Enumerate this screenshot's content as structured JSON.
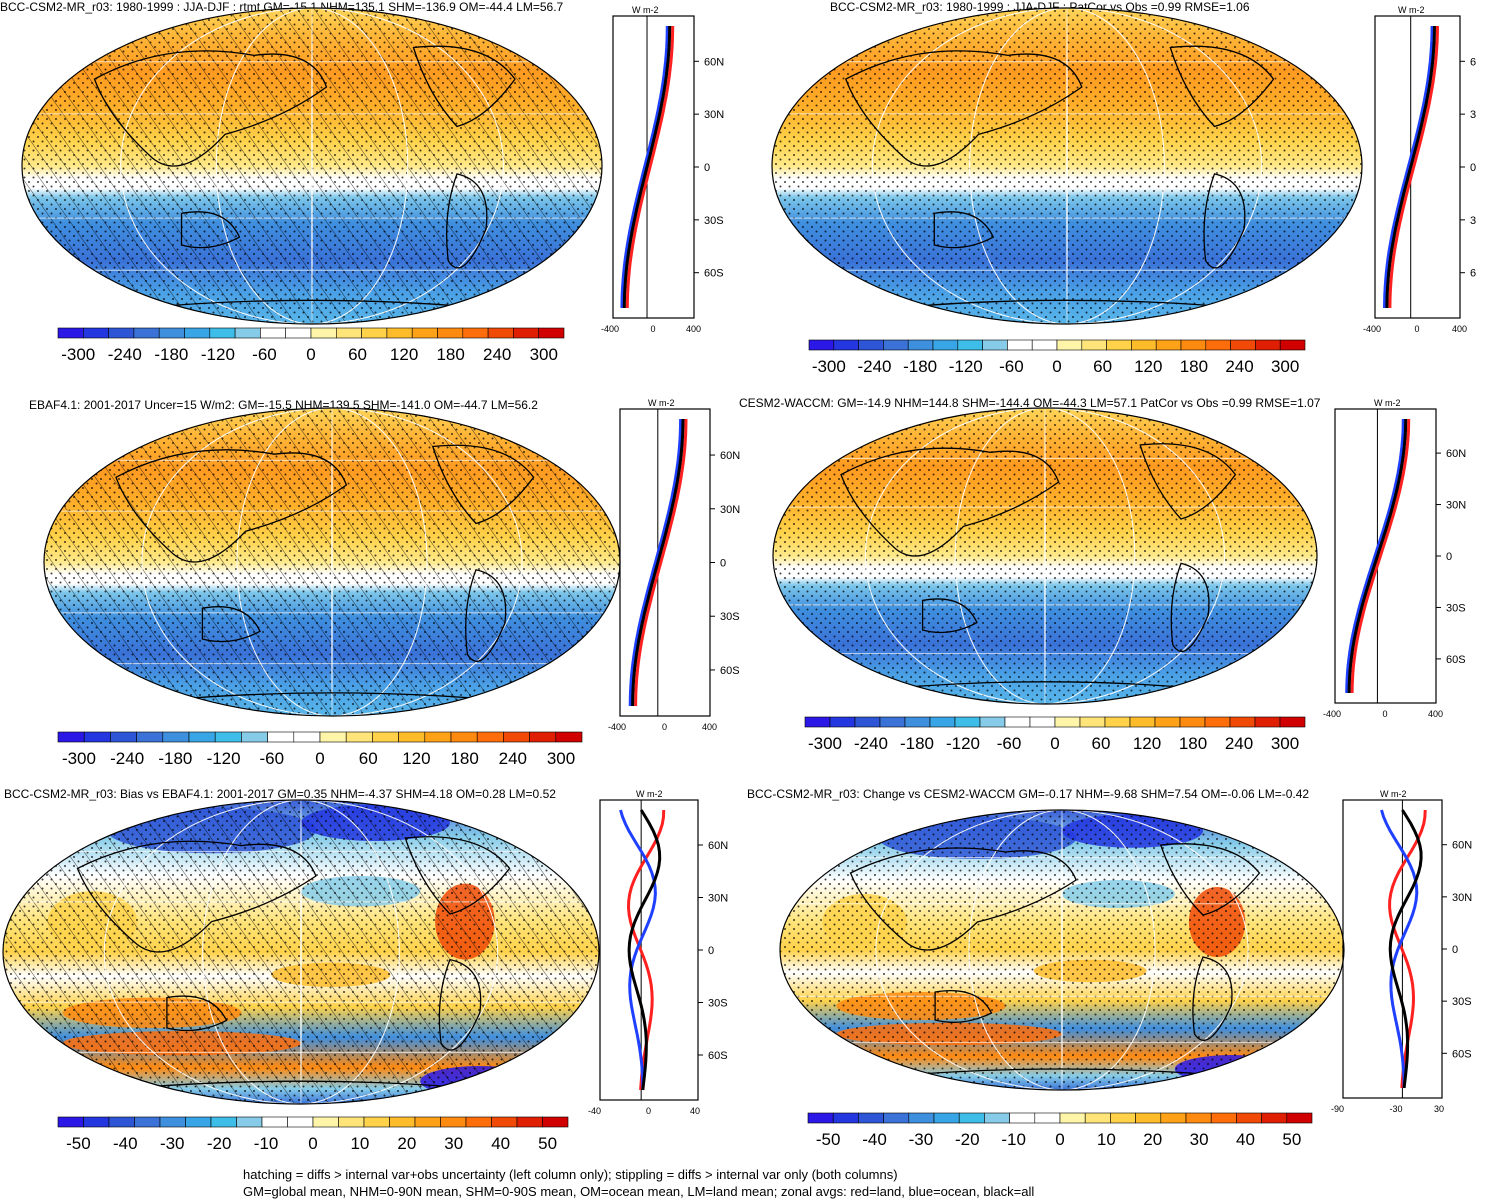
{
  "panels": [
    {
      "title": "BCC-CSM2-MR_r03: 1980-1999 : JJA-DJF : rtmt GM=-15.1 NHM=135.1 SHM=-136.9 OM=-44.4 LM=56.7",
      "kind": "abs",
      "hatch": true,
      "lat_labels": [
        "60N",
        "30N",
        "0",
        "30S",
        "60S"
      ],
      "x_ticks": [
        "-400",
        "0",
        "400"
      ],
      "cbar_labels": [
        "-300",
        "-240",
        "-180",
        "-120",
        "-60",
        "0",
        "60",
        "120",
        "180",
        "240",
        "300"
      ],
      "units": "W m-2"
    },
    {
      "title": "BCC-CSM2-MR_r03: 1980-1999 : JJA-DJF : PatCor vs Obs =0.99 RMSE=1.06",
      "kind": "abs",
      "hatch": false,
      "lat_labels": [
        "6",
        "3",
        "0",
        "3",
        "6"
      ],
      "x_ticks": [
        "-400",
        "0",
        "400"
      ],
      "cbar_labels": [
        "-300",
        "-240",
        "-180",
        "-120",
        "-60",
        "0",
        "60",
        "120",
        "180",
        "240",
        "300"
      ],
      "units": "W m-2"
    },
    {
      "title": "EBAF4.1: 2001-2017 Uncer=15 W/m2: GM=-15.5 NHM=139.5 SHM=-141.0 OM=-44.7 LM=56.2",
      "kind": "abs",
      "hatch": true,
      "lat_labels": [
        "60N",
        "30N",
        "0",
        "30S",
        "60S"
      ],
      "x_ticks": [
        "-400",
        "0",
        "400"
      ],
      "cbar_labels": [
        "-300",
        "-240",
        "-180",
        "-120",
        "-60",
        "0",
        "60",
        "120",
        "180",
        "240",
        "300"
      ],
      "units": "W m-2"
    },
    {
      "title": "CESM2-WACCM: GM=-14.9 NHM=144.8 SHM=-144.4 OM=-44.3 LM=57.1 PatCor vs Obs =0.99 RMSE=1.07",
      "kind": "abs",
      "hatch": false,
      "lat_labels": [
        "60N",
        "30N",
        "0",
        "30S",
        "60S"
      ],
      "x_ticks": [
        "-400",
        "0",
        "400"
      ],
      "cbar_labels": [
        "-300",
        "-240",
        "-180",
        "-120",
        "-60",
        "0",
        "60",
        "120",
        "180",
        "240",
        "300"
      ],
      "units": "W m-2"
    },
    {
      "title": "BCC-CSM2-MR_r03: Bias vs EBAF4.1: 2001-2017 GM=0.35 NHM=-4.37 SHM=4.18 OM=0.28 LM=0.52",
      "kind": "diff",
      "hatch": true,
      "lat_labels": [
        "60N",
        "30N",
        "0",
        "30S",
        "60S"
      ],
      "x_ticks": [
        "-40",
        "0",
        "40"
      ],
      "cbar_labels": [
        "-50",
        "-40",
        "-30",
        "-20",
        "-10",
        "0",
        "10",
        "20",
        "30",
        "40",
        "50"
      ],
      "units": "W m-2"
    },
    {
      "title": "BCC-CSM2-MR_r03: Change vs CESM2-WACCM GM=-0.17 NHM=-9.68 SHM=7.54 OM=-0.06 LM=-0.42",
      "kind": "diff",
      "hatch": false,
      "lat_labels": [
        "60N",
        "30N",
        "0",
        "30S",
        "60S"
      ],
      "x_ticks": [
        "-90",
        "-30",
        "30"
      ],
      "cbar_labels": [
        "-50",
        "-40",
        "-30",
        "-20",
        "-10",
        "0",
        "10",
        "20",
        "30",
        "40",
        "50"
      ],
      "units": "W m-2"
    }
  ],
  "footer": {
    "line1": "hatching = diffs > internal var+obs uncertainty (left column only); stippling = diffs > internal var only (both columns)",
    "line2": "GM=global mean, NHM=0-90N mean, SHM=0-90S mean, OM=ocean mean, LM=land mean; zonal avgs: red=land, blue=ocean, black=all"
  },
  "colors": {
    "palette": [
      "#2b17e6",
      "#2336e0",
      "#2e55d6",
      "#3a72d8",
      "#3f8fdf",
      "#38a6e6",
      "#3fbde9",
      "#86cce9",
      "#ffffff",
      "#ffffff",
      "#fff5a8",
      "#ffe47a",
      "#ffd24a",
      "#ffbc2a",
      "#ffa218",
      "#ff8a10",
      "#ff6e0a",
      "#f04a06",
      "#e01e02",
      "#d00000"
    ],
    "land_line": "#ff2020",
    "ocean_line": "#2040ff",
    "all_line": "#000000"
  }
}
